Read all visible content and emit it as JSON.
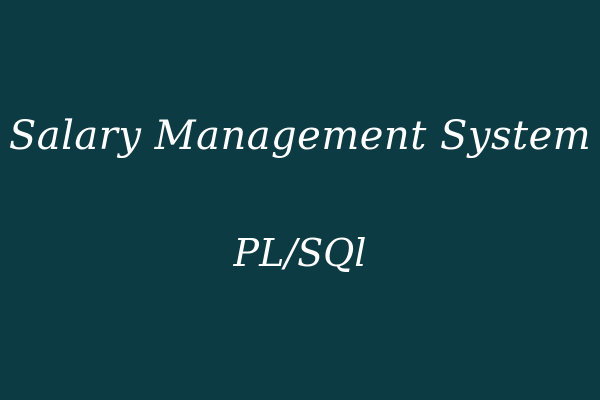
{
  "slide": {
    "title": "Salary Management System",
    "subtitle": "PL/SQl",
    "background_color": "#0d3b43",
    "text_color": "#ffffff"
  }
}
